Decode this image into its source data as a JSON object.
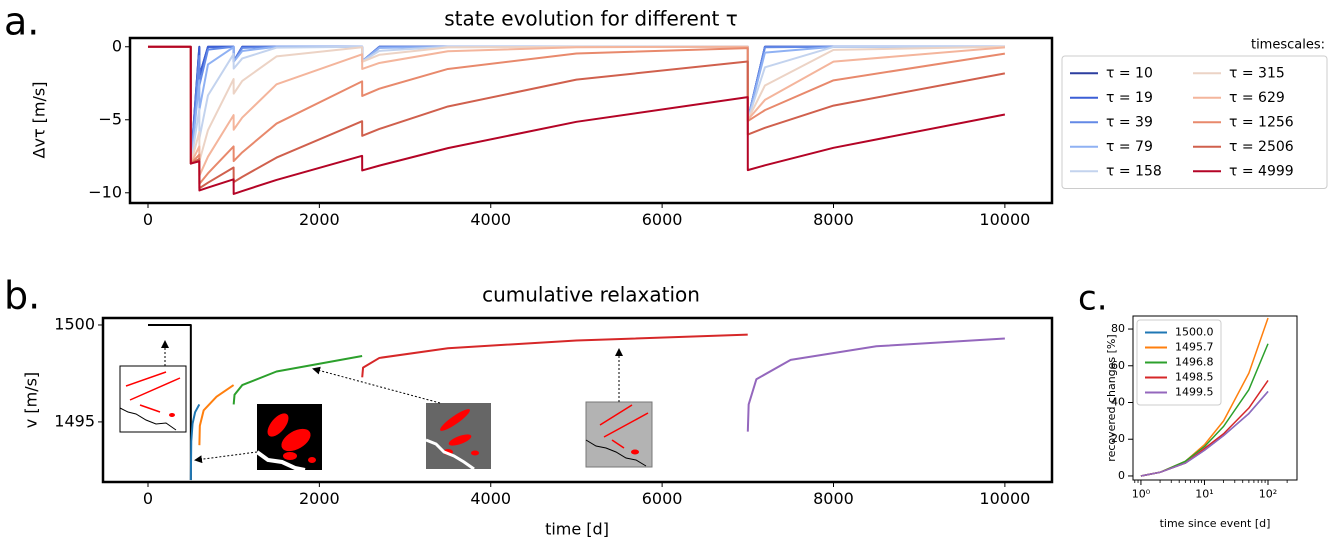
{
  "chart_data": [
    {
      "type": "line",
      "panel_label": "a.",
      "title": "state evolution for different τ",
      "ylabel": "Δvτ [m/s]",
      "x": [
        0,
        499,
        500,
        599,
        600,
        700,
        999,
        1000,
        1100,
        1500,
        2499,
        2500,
        2700,
        3500,
        5000,
        6999,
        7000,
        7200,
        8000,
        10000
      ],
      "series": [
        {
          "name": "τ = 10",
          "color": "#2c3e9f",
          "values": [
            0,
            0,
            -8,
            0,
            -2,
            0,
            0,
            -1,
            0,
            0,
            0,
            -1,
            0,
            0,
            0,
            0,
            -5,
            0,
            0,
            0
          ]
        },
        {
          "name": "τ = 19",
          "color": "#3b5fd6",
          "values": [
            0,
            0,
            -8,
            -0.04,
            -2.04,
            -0.01,
            0,
            -1,
            -0.01,
            0,
            0,
            -1,
            0,
            0,
            0,
            0,
            -5,
            0,
            0,
            0
          ]
        },
        {
          "name": "τ = 39",
          "color": "#6389e6",
          "values": [
            0,
            0,
            -8,
            -0.63,
            -2.63,
            -0.2,
            0,
            -1,
            -0.08,
            0,
            0,
            -1,
            -0.01,
            0,
            0,
            0,
            -5,
            -0.03,
            0,
            0
          ]
        },
        {
          "name": "τ = 79",
          "color": "#8fb1f3",
          "values": [
            0,
            0,
            -8,
            -2.29,
            -4.29,
            -1.21,
            -0.03,
            -1.03,
            -0.29,
            0,
            0,
            -1,
            -0.08,
            0,
            0,
            0,
            -5,
            -0.4,
            0,
            0
          ]
        },
        {
          "name": "τ = 158",
          "color": "#c3d3ee",
          "values": [
            0,
            0,
            -8,
            -4.27,
            -6.27,
            -3.33,
            -0.5,
            -1.5,
            -0.8,
            -0.06,
            0,
            -1,
            -0.28,
            0,
            0,
            0,
            -5,
            -1.41,
            -0.01,
            0
          ]
        },
        {
          "name": "τ = 315",
          "color": "#ecd3c5",
          "values": [
            0,
            0,
            -8,
            -5.84,
            -7.84,
            -5.71,
            -2.21,
            -3.21,
            -2.34,
            -0.66,
            -0.03,
            -1.03,
            -0.55,
            -0.04,
            0,
            0,
            -5,
            -2.65,
            -0.21,
            0
          ]
        },
        {
          "name": "τ = 629",
          "color": "#f4b59c",
          "values": [
            0,
            0,
            -8,
            -6.83,
            -8.83,
            -7.53,
            -4.68,
            -5.68,
            -4.85,
            -2.57,
            -0.52,
            -1.52,
            -1.11,
            -0.31,
            -0.03,
            0,
            -5,
            -3.64,
            -1.02,
            -0.04
          ]
        },
        {
          "name": "τ = 1256",
          "color": "#e8896c",
          "values": [
            0,
            0,
            -8,
            -7.39,
            -9.39,
            -8.67,
            -6.83,
            -7.83,
            -7.23,
            -5.26,
            -2.37,
            -3.37,
            -2.87,
            -1.52,
            -0.46,
            -0.09,
            -5.09,
            -4.34,
            -2.3,
            -0.47
          ]
        },
        {
          "name": "τ = 2506",
          "color": "#d0604d",
          "values": [
            0,
            0,
            -8,
            -7.69,
            -9.69,
            -9.31,
            -8.27,
            -9.27,
            -8.91,
            -7.59,
            -5.1,
            -6.1,
            -5.63,
            -4.09,
            -2.25,
            -1.01,
            -6.01,
            -5.55,
            -4.03,
            -1.82
          ]
        },
        {
          "name": "τ = 4999",
          "color": "#b40426",
          "values": [
            0,
            0,
            -8,
            -7.84,
            -9.84,
            -9.64,
            -9.08,
            -10.08,
            -9.88,
            -9.12,
            -7.47,
            -8.47,
            -8.14,
            -6.94,
            -5.14,
            -3.45,
            -8.45,
            -8.12,
            -6.92,
            -4.64
          ]
        }
      ],
      "xlim": [
        -210,
        10550
      ],
      "ylim": [
        -10.7,
        0.6
      ],
      "xticks": [
        0,
        2000,
        4000,
        6000,
        8000,
        10000
      ],
      "yticks": [
        0,
        {
          "value": -5,
          "label": "−5"
        },
        {
          "value": -10,
          "label": "−10"
        }
      ],
      "legend": "outside right",
      "legend_title": "timescales:"
    },
    {
      "type": "line",
      "panel_label": "b.",
      "title": "cumulative relaxation",
      "xlabel": "time [d]",
      "ylabel": "v [m/s]",
      "series": [
        {
          "color": "#000000",
          "x": [
            0,
            500,
            500
          ],
          "values": [
            1500,
            1500,
            1492
          ]
        },
        {
          "color": "#1f77b4",
          "x": [
            500,
            505,
            520,
            550,
            599
          ],
          "values": [
            1492,
            1494,
            1494.9,
            1495.5,
            1495.9
          ]
        },
        {
          "color": "#ff7f0e",
          "x": [
            600,
            605,
            650,
            800,
            999
          ],
          "values": [
            1493.8,
            1494.8,
            1495.6,
            1496.3,
            1496.9
          ]
        },
        {
          "color": "#2ca02c",
          "x": [
            1000,
            1010,
            1100,
            1500,
            2000,
            2499
          ],
          "values": [
            1495.9,
            1496.4,
            1496.9,
            1497.6,
            1498,
            1498.4
          ]
        },
        {
          "color": "#d62728",
          "x": [
            2500,
            2510,
            2700,
            3500,
            5000,
            6999
          ],
          "values": [
            1497.3,
            1497.8,
            1498.3,
            1498.8,
            1499.2,
            1499.5
          ]
        },
        {
          "color": "#9467bd",
          "x": [
            7000,
            7010,
            7100,
            7500,
            8500,
            10000
          ],
          "values": [
            1494.5,
            1495.9,
            1497.2,
            1498.2,
            1498.9,
            1499.3
          ]
        }
      ],
      "xlim": [
        -525,
        10550
      ],
      "ylim": [
        1491.9,
        1500.36
      ],
      "xticks": [
        0,
        2000,
        4000,
        6000,
        8000,
        10000
      ],
      "yticks": [
        1495,
        1500
      ]
    },
    {
      "type": "line",
      "panel_label": "c.",
      "xlabel": "time since event [d]",
      "ylabel": "recovered changes [%]",
      "x": [
        1,
        2,
        5,
        10,
        20,
        50,
        100
      ],
      "series": [
        {
          "name": "1500.0",
          "color": "#1f77b4",
          "values": [
            0,
            2,
            7,
            14,
            22,
            34,
            46
          ]
        },
        {
          "name": "1495.7",
          "color": "#ff7f0e",
          "values": [
            0,
            2,
            8,
            17,
            30,
            56,
            86
          ]
        },
        {
          "name": "1496.8",
          "color": "#2ca02c",
          "values": [
            0,
            2,
            8,
            16,
            27,
            47,
            72
          ]
        },
        {
          "name": "1498.5",
          "color": "#d62728",
          "values": [
            0,
            2,
            7,
            15,
            23,
            37,
            52
          ]
        },
        {
          "name": "1499.5",
          "color": "#9467bd",
          "values": [
            0,
            2,
            7,
            14,
            22,
            34,
            46
          ]
        }
      ],
      "xlim": [
        0.75,
        286
      ],
      "ylim": [
        -2.2,
        87.1
      ],
      "log_x": true,
      "xticks": [
        {
          "value": 1,
          "label": "10⁰"
        },
        {
          "value": 10,
          "label": "10¹"
        },
        {
          "value": 100,
          "label": "10²"
        }
      ],
      "yticks": [
        0,
        20,
        40,
        60,
        80
      ],
      "legend": "upper left"
    }
  ]
}
